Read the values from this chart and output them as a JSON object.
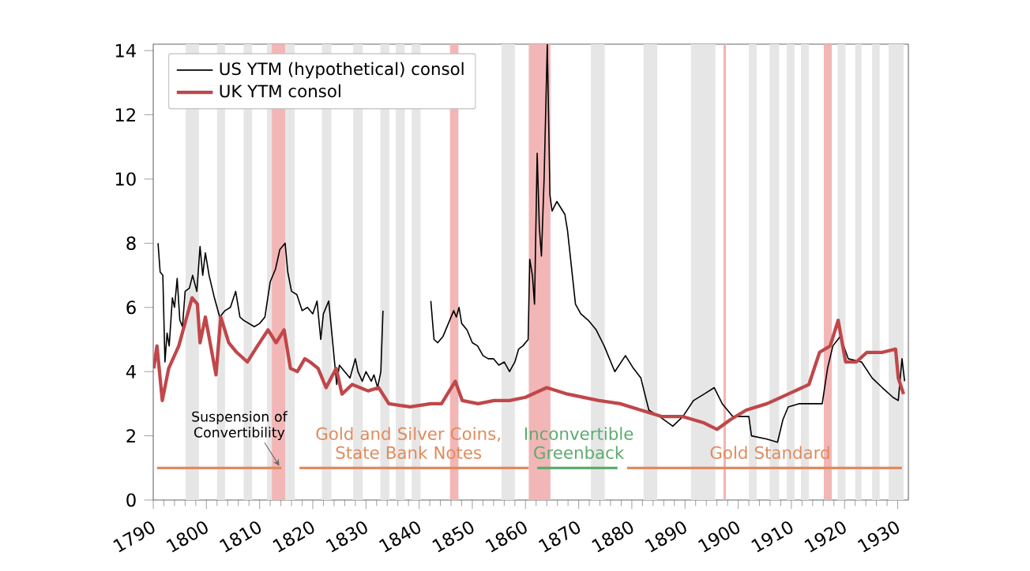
{
  "chart_data": {
    "type": "line",
    "xlim": [
      1790,
      1932
    ],
    "ylim": [
      0,
      14.2
    ],
    "xticks": [
      1790,
      1800,
      1810,
      1820,
      1830,
      1840,
      1850,
      1860,
      1870,
      1880,
      1890,
      1900,
      1910,
      1920,
      1930
    ],
    "yticks": [
      0,
      2,
      4,
      6,
      8,
      10,
      12,
      14
    ],
    "legend": "top left",
    "grid": false,
    "marker": "none",
    "line_style": "solid",
    "series": [
      {
        "name": "US YTM (hypothetical) consol",
        "color": "#000000",
        "x": [
          1790.9,
          1791.3,
          1791.8,
          1792.2,
          1792.6,
          1793,
          1793.6,
          1794,
          1794.5,
          1795,
          1795.5,
          1796,
          1796.8,
          1797.4,
          1798.2,
          1798.8,
          1799.3,
          1799.8,
          1800.5,
          1801.5,
          1802.5,
          1803.5,
          1804.5,
          1805.5,
          1806.3,
          1807,
          1808,
          1809,
          1810,
          1811,
          1812,
          1813,
          1813.8,
          1814.8,
          1815.3,
          1816,
          1817,
          1818,
          1819,
          1820,
          1820.8,
          1821.5,
          1822,
          1823,
          1824.5,
          1825,
          1826,
          1827,
          1828,
          1828.5,
          1829.3,
          1830,
          1831,
          1831.5,
          1832.2,
          1832.8,
          1833.2,
          1838,
          1842.2,
          1842.8,
          1843.5,
          1844.5,
          1845.5,
          1846.5,
          1847,
          1847.5,
          1848,
          1849,
          1850,
          1851,
          1852,
          1853,
          1854,
          1855,
          1856,
          1857,
          1858,
          1858.7,
          1859.5,
          1860.5,
          1860.8,
          1861.3,
          1861.7,
          1862.2,
          1862.6,
          1863,
          1863.5,
          1864.1,
          1864.6,
          1865,
          1865.9,
          1867.4,
          1867.9,
          1869.4,
          1870.4,
          1871.8,
          1873.3,
          1874.8,
          1876.8,
          1878.8,
          1880.3,
          1881.7,
          1883.2,
          1885.2,
          1887.7,
          1889.6,
          1891.6,
          1893.6,
          1895.5,
          1897,
          1899,
          1902,
          1902.5,
          1905.4,
          1907.4,
          1908.4,
          1909.4,
          1911.4,
          1915.8,
          1916.8,
          1917.8,
          1919.2,
          1920.7,
          1923.2,
          1925.2,
          1927.1,
          1929.1,
          1930.1,
          1930.8,
          1931.3
        ],
        "values": [
          8.0,
          7.1,
          7.0,
          4.3,
          5.2,
          4.8,
          6.3,
          6.0,
          6.9,
          5.6,
          5.4,
          6.5,
          6.6,
          7.0,
          6.5,
          7.9,
          7.0,
          7.7,
          7.0,
          6.3,
          5.7,
          5.9,
          6.0,
          6.5,
          5.7,
          5.6,
          5.5,
          5.4,
          5.5,
          5.7,
          6.8,
          7.2,
          7.8,
          8.0,
          7.1,
          6.5,
          6.4,
          5.9,
          6.0,
          5.8,
          6.2,
          5.0,
          5.8,
          6.2,
          3.6,
          4.2,
          4.0,
          3.8,
          4.4,
          4.0,
          3.7,
          4.0,
          3.7,
          3.9,
          3.5,
          4.0,
          5.9,
          null,
          6.2,
          5.0,
          4.9,
          5.1,
          5.5,
          5.9,
          5.7,
          6.0,
          5.5,
          5.3,
          4.9,
          4.8,
          4.5,
          4.4,
          4.4,
          4.2,
          4.3,
          4.0,
          4.3,
          4.7,
          4.8,
          5.0,
          7.5,
          7.0,
          6.1,
          10.8,
          8.5,
          7.6,
          10.0,
          14.2,
          9.5,
          9.0,
          9.3,
          8.9,
          8.4,
          6.1,
          5.8,
          5.6,
          5.3,
          4.8,
          4.0,
          4.5,
          4.1,
          3.8,
          2.8,
          2.6,
          2.3,
          2.6,
          3.1,
          3.3,
          3.5,
          3.0,
          2.6,
          2.6,
          2.0,
          1.9,
          1.8,
          2.5,
          2.9,
          3.0,
          3.0,
          4.1,
          4.8,
          5.1,
          4.4,
          4.3,
          3.8,
          3.5,
          3.2,
          3.1,
          4.4,
          3.7
        ]
      },
      {
        "name": "UK YTM consol",
        "color": "#c0474a",
        "x": [
          1790.1,
          1790.7,
          1791.7,
          1792.9,
          1794.8,
          1796.3,
          1797.3,
          1798.3,
          1798.8,
          1799.8,
          1800.8,
          1801.8,
          1802.7,
          1804.2,
          1805.7,
          1807.7,
          1809.6,
          1811.6,
          1813.1,
          1814.6,
          1815.8,
          1817.1,
          1818.5,
          1819.5,
          1821,
          1822.5,
          1824.4,
          1825.5,
          1827.4,
          1830.4,
          1832.4,
          1834.3,
          1838.3,
          1842.2,
          1844.2,
          1846.8,
          1848.1,
          1851.1,
          1854.1,
          1857,
          1860,
          1864,
          1867.9,
          1873.8,
          1877.8,
          1881.7,
          1885.7,
          1889.6,
          1893.6,
          1896,
          1898.5,
          1901.5,
          1905.4,
          1909.4,
          1913.3,
          1915.3,
          1917.3,
          1918.8,
          1920.2,
          1922.2,
          1924.2,
          1927.1,
          1929.6,
          1930.1,
          1931.1
        ],
        "values": [
          4.1,
          4.8,
          3.1,
          4.1,
          4.8,
          5.7,
          6.3,
          6.1,
          4.9,
          5.7,
          4.8,
          3.9,
          5.7,
          4.9,
          4.6,
          4.3,
          4.8,
          5.3,
          4.9,
          5.3,
          4.1,
          4.0,
          4.4,
          4.3,
          4.1,
          3.5,
          4.1,
          3.3,
          3.6,
          3.4,
          3.5,
          3.0,
          2.9,
          3.0,
          3.0,
          3.7,
          3.1,
          3.0,
          3.1,
          3.1,
          3.2,
          3.5,
          3.3,
          3.1,
          3.0,
          2.8,
          2.6,
          2.6,
          2.4,
          2.2,
          2.5,
          2.8,
          3.0,
          3.3,
          3.6,
          4.6,
          4.8,
          5.6,
          4.3,
          4.3,
          4.6,
          4.6,
          4.7,
          3.8,
          3.3
        ]
      },
      {
        "color": "#e08a5c",
        "x": [
          1790.7,
          1814.1
        ],
        "values": [
          1,
          1
        ]
      },
      {
        "color": "#e08a5c",
        "x": [
          1817.5,
          1860.6
        ],
        "values": [
          1,
          1
        ]
      },
      {
        "color": "#5cab6e",
        "x": [
          1862.2,
          1877.3
        ],
        "values": [
          1,
          1
        ]
      },
      {
        "color": "#e08a5c",
        "x": [
          1879.1,
          1930.8
        ],
        "values": [
          1,
          1
        ]
      }
    ],
    "bands": [
      {
        "axis": "x",
        "from": 1796.1,
        "to": 1798.6,
        "color": "#e6e6e6"
      },
      {
        "axis": "x",
        "from": 1802,
        "to": 1803.5,
        "color": "#e6e6e6"
      },
      {
        "axis": "x",
        "from": 1807,
        "to": 1808.6,
        "color": "#e6e6e6"
      },
      {
        "axis": "x",
        "from": 1811.4,
        "to": 1812.3,
        "color": "#e6e6e6"
      },
      {
        "axis": "x",
        "from": 1814.8,
        "to": 1816.6,
        "color": "#e6e6e6"
      },
      {
        "axis": "x",
        "from": 1821.7,
        "to": 1823.5,
        "color": "#e6e6e6"
      },
      {
        "axis": "x",
        "from": 1827.6,
        "to": 1829.4,
        "color": "#e6e6e6"
      },
      {
        "axis": "x",
        "from": 1832.7,
        "to": 1834.4,
        "color": "#e6e6e6"
      },
      {
        "axis": "x",
        "from": 1835.6,
        "to": 1837.3,
        "color": "#e6e6e6"
      },
      {
        "axis": "x",
        "from": 1838.6,
        "to": 1840.3,
        "color": "#e6e6e6"
      },
      {
        "axis": "x",
        "from": 1855.5,
        "to": 1858,
        "color": "#e6e6e6"
      },
      {
        "axis": "x",
        "from": 1872.3,
        "to": 1874.9,
        "color": "#e6e6e6"
      },
      {
        "axis": "x",
        "from": 1882.2,
        "to": 1884.8,
        "color": "#e6e6e6"
      },
      {
        "axis": "x",
        "from": 1891.1,
        "to": 1895.7,
        "color": "#e6e6e6"
      },
      {
        "axis": "x",
        "from": 1902,
        "to": 1903.5,
        "color": "#e6e6e6"
      },
      {
        "axis": "x",
        "from": 1905.9,
        "to": 1907.7,
        "color": "#e6e6e6"
      },
      {
        "axis": "x",
        "from": 1909.1,
        "to": 1910.6,
        "color": "#e6e6e6"
      },
      {
        "axis": "x",
        "from": 1911.8,
        "to": 1913.3,
        "color": "#e6e6e6"
      },
      {
        "axis": "x",
        "from": 1918.7,
        "to": 1920.2,
        "color": "#e6e6e6"
      },
      {
        "axis": "x",
        "from": 1922,
        "to": 1923.2,
        "color": "#e6e6e6"
      },
      {
        "axis": "x",
        "from": 1925.2,
        "to": 1926.6,
        "color": "#e6e6e6"
      },
      {
        "axis": "x",
        "from": 1928.3,
        "to": 1931.1,
        "color": "#e6e6e6"
      },
      {
        "axis": "x",
        "from": 1812.3,
        "to": 1814.8,
        "color": "#f2b6b6"
      },
      {
        "axis": "x",
        "from": 1845.8,
        "to": 1847.4,
        "color": "#f2b6b6"
      },
      {
        "axis": "x",
        "from": 1860.6,
        "to": 1864.7,
        "color": "#f2b6b6"
      },
      {
        "axis": "x",
        "from": 1897.2,
        "to": 1897.7,
        "color": "#f2b6b6"
      },
      {
        "axis": "x",
        "from": 1916.1,
        "to": 1917.6,
        "color": "#f2b6b6"
      }
    ],
    "annotations": [
      {
        "text": "Suspension of Convertibility",
        "x": 1814.1,
        "y": 1
      },
      {
        "text": "Gold and Silver Coins, State Bank Notes",
        "x": 1838,
        "y": 1.2
      },
      {
        "text": "Inconvertible Greenback",
        "x": 1870,
        "y": 1.2
      },
      {
        "text": "Gold Standard",
        "x": 1906,
        "y": 1.2
      }
    ]
  }
}
